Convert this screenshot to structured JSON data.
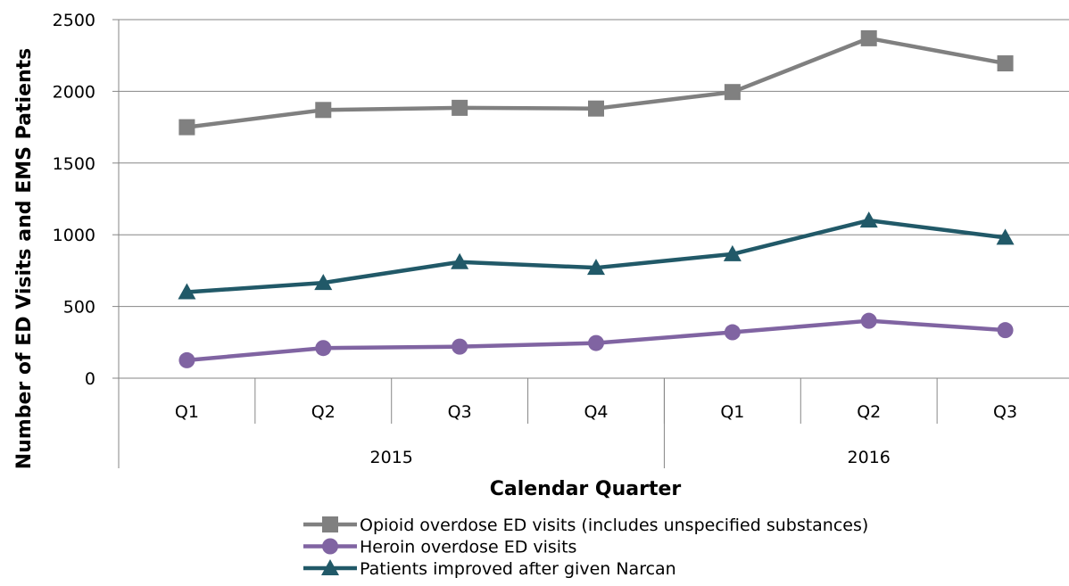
{
  "chart_data": {
    "type": "line",
    "xlabel": "Calendar Quarter",
    "ylabel": "Number of ED Visits and EMS Patients",
    "ylim": [
      0,
      2500
    ],
    "yticks": [
      "0",
      "500",
      "1000",
      "1500",
      "2000",
      "2500"
    ],
    "categories": [
      "Q1",
      "Q2",
      "Q3",
      "Q4",
      "Q1",
      "Q2",
      "Q3"
    ],
    "groups": [
      {
        "label": "2015",
        "count": 4
      },
      {
        "label": "2016",
        "count": 3
      }
    ],
    "grid": "horizontal",
    "legend_position": "bottom",
    "series": [
      {
        "name": "Opioid overdose ED visits (includes unspecified substances)",
        "color": "#808080",
        "marker": "square",
        "values": [
          1750,
          1870,
          1885,
          1880,
          1995,
          2370,
          2195
        ]
      },
      {
        "name": "Heroin overdose ED visits",
        "color": "#8064a2",
        "marker": "circle",
        "values": [
          125,
          210,
          220,
          245,
          320,
          400,
          335
        ]
      },
      {
        "name": "Patients improved after given Narcan",
        "color": "#215968",
        "marker": "triangle",
        "values": [
          600,
          665,
          810,
          770,
          865,
          1100,
          980
        ]
      }
    ]
  }
}
